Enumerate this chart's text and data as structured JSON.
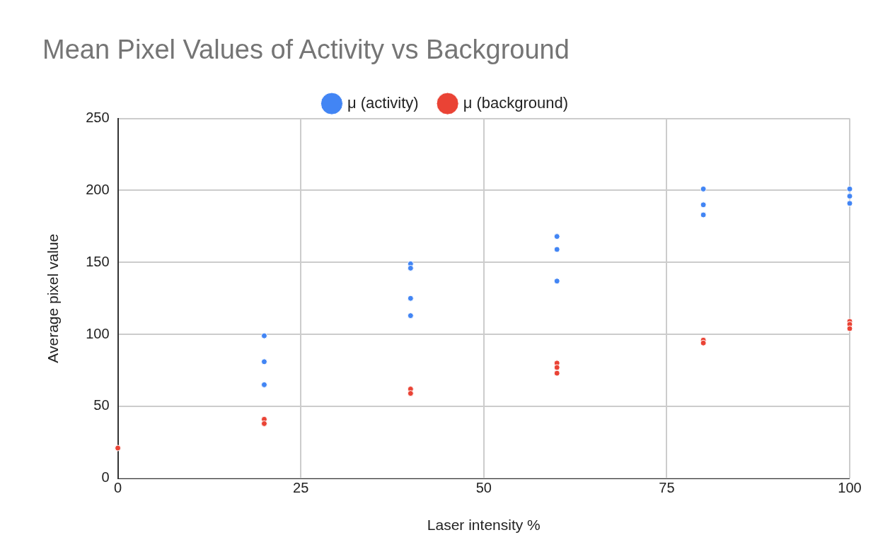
{
  "chart_data": {
    "type": "scatter",
    "title": "Mean Pixel Values of Activity vs Background",
    "xlabel": "Laser intensity %",
    "ylabel": "Average pixel value",
    "series": [
      {
        "name": "μ (activity)",
        "color": "#4285f4",
        "x": [
          20,
          20,
          20,
          40,
          40,
          40,
          40,
          60,
          60,
          60,
          80,
          80,
          80,
          100,
          100,
          100
        ],
        "values": [
          99,
          81,
          65,
          149,
          146,
          125,
          113,
          168,
          159,
          137,
          201,
          190,
          183,
          201,
          196,
          191
        ]
      },
      {
        "name": "μ (background)",
        "color": "#ea4335",
        "x": [
          0,
          20,
          20,
          40,
          40,
          60,
          60,
          60,
          80,
          80,
          100,
          100,
          100
        ],
        "values": [
          21,
          41,
          38,
          62,
          59,
          80,
          77,
          73,
          96,
          94,
          109,
          107,
          104
        ]
      }
    ],
    "xlim": [
      0,
      100
    ],
    "xticks": [
      0,
      25,
      50,
      75,
      100
    ],
    "ylim": [
      0,
      250
    ],
    "yticks": [
      0,
      50,
      100,
      150,
      200,
      250
    ],
    "grid": true,
    "legend": "top",
    "marker": "circle"
  }
}
